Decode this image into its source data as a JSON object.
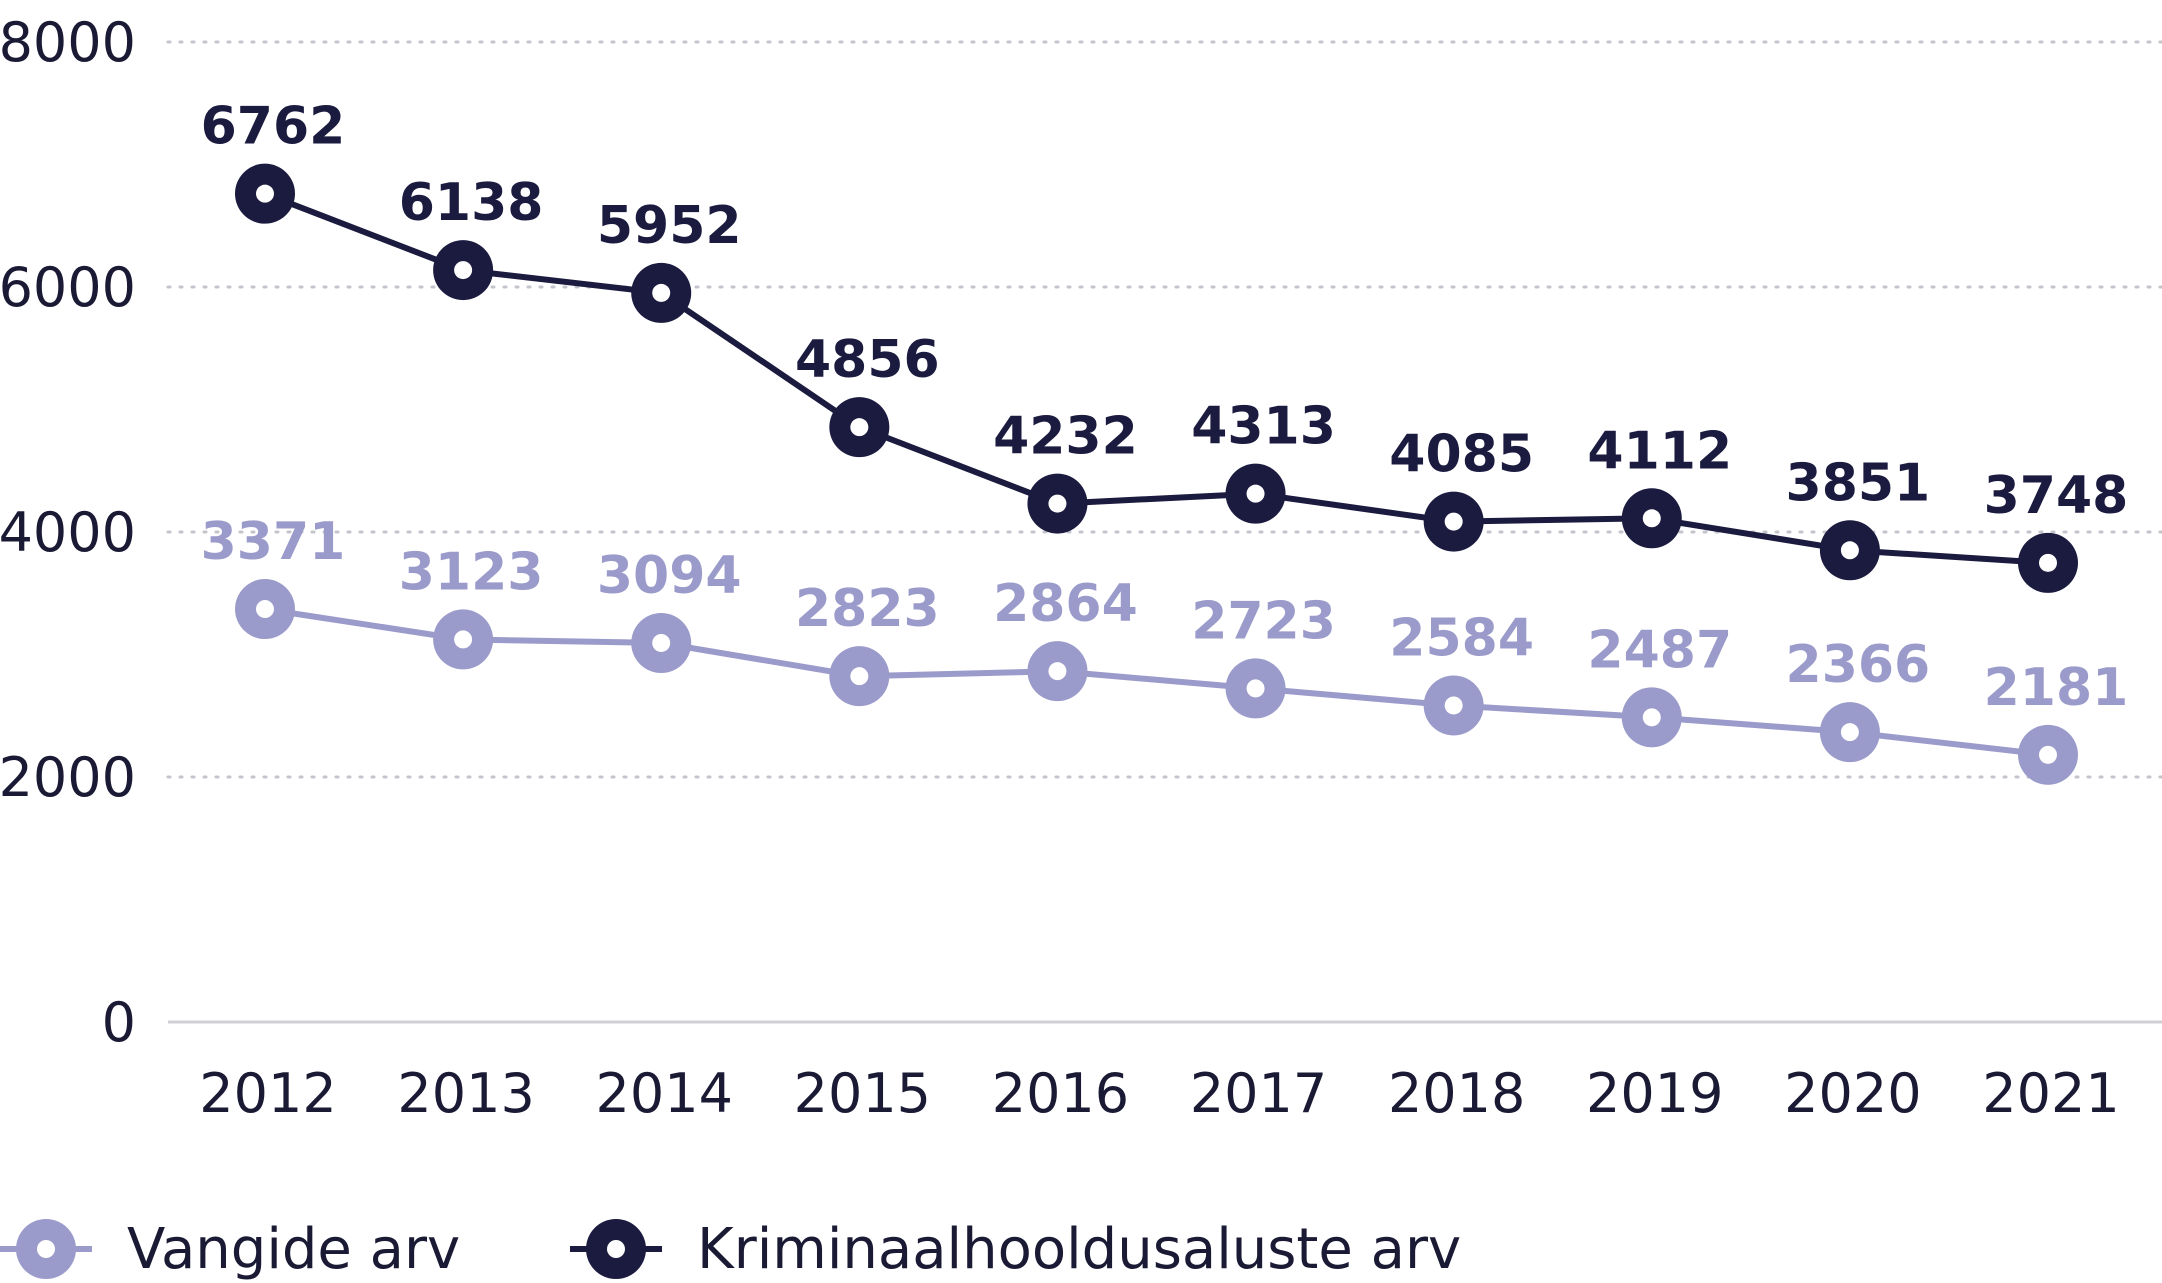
{
  "chart_data": {
    "type": "line",
    "x": [
      2012,
      2013,
      2014,
      2015,
      2016,
      2017,
      2018,
      2019,
      2020,
      2021
    ],
    "categories": [
      "2012",
      "2013",
      "2014",
      "2015",
      "2016",
      "2017",
      "2018",
      "2019",
      "2020",
      "2021"
    ],
    "series": [
      {
        "name": "Vangide arv",
        "values": [
          3371,
          3123,
          3094,
          2823,
          2864,
          2723,
          2584,
          2487,
          2366,
          2181
        ],
        "color": "#9b9bcb"
      },
      {
        "name": "Kriminaalhooldusaluste arv",
        "values": [
          6762,
          6138,
          5952,
          4856,
          4232,
          4313,
          4085,
          4112,
          3851,
          3748
        ],
        "color": "#1b1a3f"
      }
    ],
    "ylim": [
      0,
      8000
    ],
    "yticks": [
      0,
      2000,
      4000,
      6000,
      8000
    ],
    "title": "",
    "xlabel": "",
    "ylabel": "",
    "grid": "horizontal-dotted",
    "legend_position": "bottom-left",
    "data_labels": true
  }
}
